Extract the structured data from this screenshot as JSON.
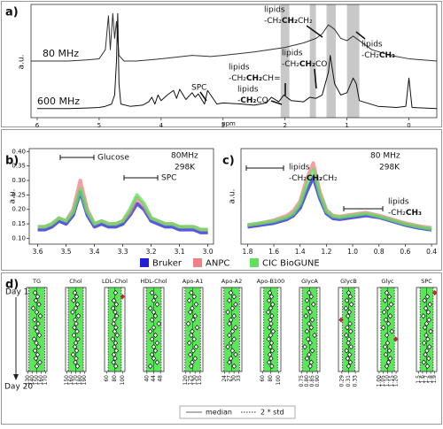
{
  "chart_data": [
    {
      "type": "line",
      "label": "a)",
      "ylabel": "a.u.",
      "xlabel": "ppm",
      "xlim": [
        6.1,
        -0.45
      ],
      "xticks": [
        6,
        5,
        4,
        3,
        2,
        1,
        0
      ],
      "ylim": [
        0,
        1
      ],
      "highlight_ranges": [
        [
          2.07,
          1.93
        ],
        [
          1.6,
          1.5
        ],
        [
          1.33,
          1.18
        ],
        [
          1.0,
          0.8
        ]
      ],
      "highlight_color": "#c8c8c8",
      "series": [
        {
          "name": "80 MHz",
          "color": "#333333",
          "x": [
            6.1,
            5.5,
            5.2,
            5.0,
            4.9,
            4.85,
            4.82,
            4.78,
            4.75,
            4.72,
            4.68,
            4.6,
            4.4,
            4.0,
            3.5,
            3.2,
            3.0,
            2.5,
            2.0,
            1.7,
            1.5,
            1.4,
            1.3,
            1.2,
            1.1,
            1.0,
            0.9,
            0.8,
            0.6,
            0.3,
            0,
            -0.45
          ],
          "values": [
            0.5,
            0.5,
            0.51,
            0.52,
            0.6,
            0.9,
            0.6,
            0.92,
            0.7,
            0.85,
            0.55,
            0.5,
            0.5,
            0.52,
            0.55,
            0.54,
            0.55,
            0.58,
            0.62,
            0.66,
            0.7,
            0.74,
            0.82,
            0.78,
            0.7,
            0.68,
            0.72,
            0.68,
            0.6,
            0.55,
            0.52,
            0.5
          ]
        },
        {
          "name": "600 MHz",
          "color": "#111111",
          "x": [
            6,
            5.5,
            5.2,
            5,
            4.9,
            4.8,
            4.75,
            4.72,
            4.7,
            4.68,
            4.65,
            4.5,
            4.3,
            4.2,
            4.15,
            4.1,
            4.05,
            4,
            3.9,
            3.8,
            3.75,
            3.7,
            3.6,
            3.5,
            3.45,
            3.4,
            3.3,
            3.25,
            3.2,
            3.1,
            3,
            2.7,
            2.5,
            2.3,
            2.22,
            2.1,
            2.02,
            1.9,
            1.7,
            1.6,
            1.5,
            1.4,
            1.3,
            1.27,
            1.2,
            1.1,
            1,
            0.9,
            0.85,
            0.8,
            0.5,
            0.2,
            0.05,
            0,
            -0.05,
            -0.45
          ],
          "values": [
            0.08,
            0.08,
            0.085,
            0.09,
            0.1,
            0.12,
            0.2,
            0.5,
            0.92,
            0.3,
            0.12,
            0.1,
            0.11,
            0.14,
            0.18,
            0.12,
            0.2,
            0.15,
            0.2,
            0.24,
            0.17,
            0.25,
            0.16,
            0.22,
            0.18,
            0.21,
            0.12,
            0.24,
            0.2,
            0.12,
            0.13,
            0.12,
            0.11,
            0.13,
            0.18,
            0.14,
            0.2,
            0.15,
            0.14,
            0.18,
            0.17,
            0.2,
            0.4,
            0.55,
            0.3,
            0.2,
            0.22,
            0.35,
            0.3,
            0.15,
            0.1,
            0.09,
            0.1,
            0.35,
            0.09,
            0.08
          ]
        }
      ],
      "annotations": [
        {
          "text": "lipids",
          "formula": [
            {
              "text": "-CH₂"
            },
            {
              "text": "CH₂",
              "bold": true
            },
            {
              "text": "CH₂"
            }
          ]
        },
        {
          "text": "lipids",
          "formula": [
            {
              "text": "-CH₂"
            },
            {
              "text": "CH₃",
              "bold": true
            }
          ]
        },
        {
          "text": "lipids",
          "formula": [
            {
              "text": "-CH₂"
            },
            {
              "text": "CH₂",
              "bold": true
            },
            {
              "text": "CO"
            }
          ]
        },
        {
          "text": "lipids",
          "formula": [
            {
              "text": "-CH₂"
            },
            {
              "text": "CH₂",
              "bold": true
            },
            {
              "text": "CH="
            }
          ]
        },
        {
          "text": "lipids",
          "formula": [
            {
              "text": "-"
            },
            {
              "text": "CH₂",
              "bold": true
            },
            {
              "text": "CO"
            }
          ]
        },
        {
          "text": "SPC"
        }
      ]
    },
    {
      "type": "line",
      "label": "b)",
      "ylabel": "a.u.",
      "xlim": [
        3.63,
        2.98
      ],
      "xticks": [
        3.6,
        3.5,
        3.4,
        3.3,
        3.2,
        3.1,
        {
          "value": 3,
          "label": "3.0"
        }
      ],
      "ylim": [
        0.08,
        0.41
      ],
      "yticks": [
        {
          "value": 0.1,
          "label": "0.10"
        },
        0.15,
        {
          "value": 0.2,
          "label": "0.20"
        },
        0.25,
        {
          "value": 0.3,
          "label": "0.30"
        },
        0.35,
        {
          "value": 0.4,
          "label": "0.40"
        }
      ],
      "x": [
        3.6,
        3.575,
        3.55,
        3.525,
        3.5,
        3.475,
        3.45,
        3.425,
        3.4,
        3.375,
        3.35,
        3.325,
        3.3,
        3.275,
        3.25,
        3.225,
        3.2,
        3.175,
        3.15,
        3.125,
        3.1,
        3.075,
        3.05,
        3.025,
        3.0
      ],
      "series": [
        {
          "name": "Bruker",
          "color": "#1f1fd6",
          "values": [
            0.13,
            0.13,
            0.14,
            0.16,
            0.15,
            0.18,
            0.26,
            0.18,
            0.14,
            0.15,
            0.14,
            0.14,
            0.15,
            0.18,
            0.22,
            0.2,
            0.16,
            0.15,
            0.14,
            0.14,
            0.13,
            0.13,
            0.13,
            0.12,
            0.12
          ]
        },
        {
          "name": "ANPC",
          "color": "#f07f86",
          "values": [
            0.14,
            0.14,
            0.15,
            0.17,
            0.16,
            0.2,
            0.3,
            0.2,
            0.15,
            0.16,
            0.15,
            0.15,
            0.16,
            0.19,
            0.24,
            0.21,
            0.17,
            0.16,
            0.15,
            0.15,
            0.14,
            0.14,
            0.14,
            0.13,
            0.13
          ]
        },
        {
          "name": "CIC BioGUNE",
          "color": "#5fe05f",
          "values": [
            0.14,
            0.14,
            0.15,
            0.17,
            0.16,
            0.19,
            0.27,
            0.19,
            0.15,
            0.16,
            0.15,
            0.15,
            0.16,
            0.2,
            0.25,
            0.22,
            0.17,
            0.16,
            0.15,
            0.15,
            0.14,
            0.14,
            0.14,
            0.13,
            0.13
          ]
        }
      ],
      "annotations": [
        {
          "text": "Glucose"
        },
        {
          "text": "SPC"
        },
        {
          "text": "80MHz"
        },
        {
          "text": "298K"
        }
      ]
    },
    {
      "type": "line",
      "label": "c)",
      "ylabel": "a.u.",
      "xlim": [
        1.85,
        0.36
      ],
      "xticks": [
        1.8,
        1.6,
        1.4,
        1.2,
        {
          "value": 1,
          "label": "1.0"
        },
        0.8,
        0.6,
        0.4
      ],
      "ylim": [
        0,
        1
      ],
      "x": [
        1.8,
        1.7,
        1.6,
        1.5,
        1.45,
        1.4,
        1.35,
        1.3,
        1.25,
        1.2,
        1.15,
        1.1,
        1.0,
        0.9,
        0.8,
        0.7,
        0.6,
        0.5,
        0.4
      ],
      "series": [
        {
          "color": "#1f1fd6",
          "values": [
            0.18,
            0.2,
            0.22,
            0.26,
            0.3,
            0.38,
            0.55,
            0.7,
            0.48,
            0.32,
            0.27,
            0.26,
            0.28,
            0.3,
            0.28,
            0.24,
            0.2,
            0.17,
            0.15
          ]
        },
        {
          "color": "#f07f86",
          "values": [
            0.2,
            0.22,
            0.25,
            0.3,
            0.35,
            0.45,
            0.68,
            0.85,
            0.55,
            0.36,
            0.3,
            0.29,
            0.31,
            0.33,
            0.3,
            0.26,
            0.22,
            0.19,
            0.17
          ]
        },
        {
          "color": "#5fe05f",
          "values": [
            0.2,
            0.22,
            0.24,
            0.28,
            0.32,
            0.42,
            0.62,
            0.78,
            0.52,
            0.34,
            0.29,
            0.28,
            0.3,
            0.32,
            0.29,
            0.25,
            0.21,
            0.18,
            0.16
          ]
        }
      ],
      "annotations": [
        {
          "text": "80 MHz"
        },
        {
          "text": "298K"
        },
        {
          "text": "lipids",
          "formula": [
            {
              "text": "-CH₂"
            },
            {
              "text": "CH₂",
              "bold": true
            },
            {
              "text": "CH₂"
            }
          ]
        },
        {
          "text": "lipids",
          "formula": [
            {
              "text": "-CH₂"
            },
            {
              "text": "CH₃",
              "bold": true
            }
          ]
        }
      ]
    },
    {
      "type": "strip",
      "title": "TG",
      "color": "#5ce65c",
      "xlim": [
        127,
        173
      ],
      "xticks": [
        130,
        140,
        150,
        160,
        170
      ],
      "median": 150,
      "std": 9,
      "values": [
        146,
        152,
        148,
        155,
        142,
        150,
        158,
        145,
        153,
        147,
        151,
        156,
        144,
        149,
        154,
        146,
        152,
        148,
        157,
        150
      ]
    },
    {
      "type": "strip",
      "title": "Chol",
      "color": "#5ce65c",
      "xlim": [
        147,
        193
      ],
      "xticks": [
        150,
        160,
        170,
        180,
        190
      ],
      "median": 170,
      "std": 8.5,
      "values": [
        168,
        172,
        165,
        174,
        170,
        163,
        176,
        169,
        171,
        167,
        173,
        166,
        175,
        170,
        168,
        172,
        164,
        171,
        169,
        174
      ]
    },
    {
      "type": "strip",
      "title": "LDL-Chol",
      "color": "#5ce65c",
      "xlim": [
        55,
        105
      ],
      "xticks": [
        60,
        80,
        100
      ],
      "median": 80,
      "std": 8,
      "values": [
        82,
        99,
        78,
        84,
        76,
        81,
        85,
        79,
        77,
        83,
        80,
        86,
        75,
        82,
        79,
        84,
        78,
        81,
        77,
        83
      ]
    },
    {
      "type": "strip",
      "title": "HDL-Chol",
      "color": "#5ce65c",
      "xlim": [
        38,
        50
      ],
      "xticks": [
        40,
        44,
        48
      ],
      "median": 44,
      "std": 2.2,
      "values": [
        43,
        45,
        44,
        46,
        42,
        44,
        45,
        43,
        47,
        44,
        42,
        45,
        43,
        46,
        44,
        45,
        43,
        44,
        46,
        42
      ]
    },
    {
      "type": "strip",
      "title": "Apo-A1",
      "color": "#5ce65c",
      "xlim": [
        117,
        138
      ],
      "xticks": [
        120,
        125,
        130,
        135
      ],
      "median": 127.5,
      "std": 4,
      "values": [
        126,
        129,
        124,
        131,
        127,
        125,
        130,
        128,
        123,
        132,
        127,
        126,
        129,
        124,
        131,
        128,
        125,
        130,
        127,
        126
      ]
    },
    {
      "type": "strip",
      "title": "Apo-A2",
      "color": "#5ce65c",
      "xlim": [
        22,
        35
      ],
      "xticks": [
        24,
        27,
        30,
        33
      ],
      "median": 28.5,
      "std": 2.5,
      "values": [
        28,
        30,
        27,
        31,
        29,
        26,
        30,
        28,
        27,
        31,
        29,
        27,
        30,
        28,
        26,
        29,
        31,
        28,
        27,
        30
      ]
    },
    {
      "type": "strip",
      "title": "Apo-B100",
      "color": "#5ce65c",
      "xlim": [
        55,
        105
      ],
      "xticks": [
        60,
        80,
        100
      ],
      "median": 80,
      "std": 8.5,
      "values": [
        78,
        82,
        76,
        85,
        80,
        74,
        83,
        79,
        81,
        77,
        86,
        80,
        75,
        82,
        79,
        84,
        78,
        81,
        76,
        83
      ]
    },
    {
      "type": "strip",
      "title": "GlycA",
      "color": "#5ce65c",
      "xlim": [
        0.73,
        0.92
      ],
      "xticks": [
        0.75,
        {
          "value": 0.8,
          "label": "0.80"
        },
        0.85,
        {
          "value": 0.9,
          "label": "0.90"
        }
      ],
      "median": 0.825,
      "std": 0.035,
      "values": [
        0.82,
        0.84,
        0.8,
        0.86,
        0.81,
        0.83,
        0.79,
        0.85,
        0.82,
        0.84,
        0.8,
        0.87,
        0.81,
        0.83,
        0.78,
        0.85,
        0.82,
        0.8,
        0.84,
        0.83
      ]
    },
    {
      "type": "strip",
      "title": "GlycB",
      "color": "#5ce65c",
      "xlim": [
        0.28,
        0.34
      ],
      "xticks": [
        0.29,
        0.31,
        0.33
      ],
      "median": 0.31,
      "std": 0.009,
      "values": [
        0.31,
        0.315,
        0.305,
        0.318,
        0.302,
        0.312,
        0.308,
        0.288,
        0.314,
        0.306,
        0.316,
        0.303,
        0.311,
        0.309,
        0.317,
        0.304,
        0.313,
        0.307,
        0.315,
        0.31
      ]
    },
    {
      "type": "strip",
      "title": "Glyc",
      "color": "#5ce65c",
      "xlim": [
        0.98,
        1.22
      ],
      "xticks": [
        {
          "value": 1,
          "label": "1.00"
        },
        1.05,
        {
          "value": 1.1,
          "label": "1.10"
        },
        1.15,
        {
          "value": 1.2,
          "label": "1.20"
        }
      ],
      "median": 1.1,
      "std": 0.04,
      "values": [
        1.09,
        1.12,
        1.07,
        1.14,
        1.1,
        1.06,
        1.13,
        1.08,
        1.11,
        1.05,
        1.15,
        1.09,
        1.195,
        1.1,
        1.07,
        1.12,
        1.08,
        1.13,
        1.11,
        1.09
      ]
    },
    {
      "type": "strip",
      "title": "SPC",
      "color": "#5ce65c",
      "xlim": [
        1.45,
        1.95
      ],
      "xticks": [
        1.5,
        1.6,
        1.7,
        1.8,
        1.9
      ],
      "median": 1.7,
      "std": 0.08,
      "values": [
        1.9,
        1.72,
        1.65,
        1.78,
        1.68,
        1.74,
        1.62,
        1.76,
        1.7,
        1.66,
        1.8,
        1.69,
        1.73,
        1.64,
        1.77,
        1.71,
        1.67,
        1.75,
        1.63,
        1.72
      ]
    }
  ],
  "panel_d": {
    "label": "d)",
    "day_start": "Day 1",
    "day_end": "Day 20",
    "legend_median": "median",
    "legend_std": "2 * std",
    "outlier_color": "#b03030"
  }
}
